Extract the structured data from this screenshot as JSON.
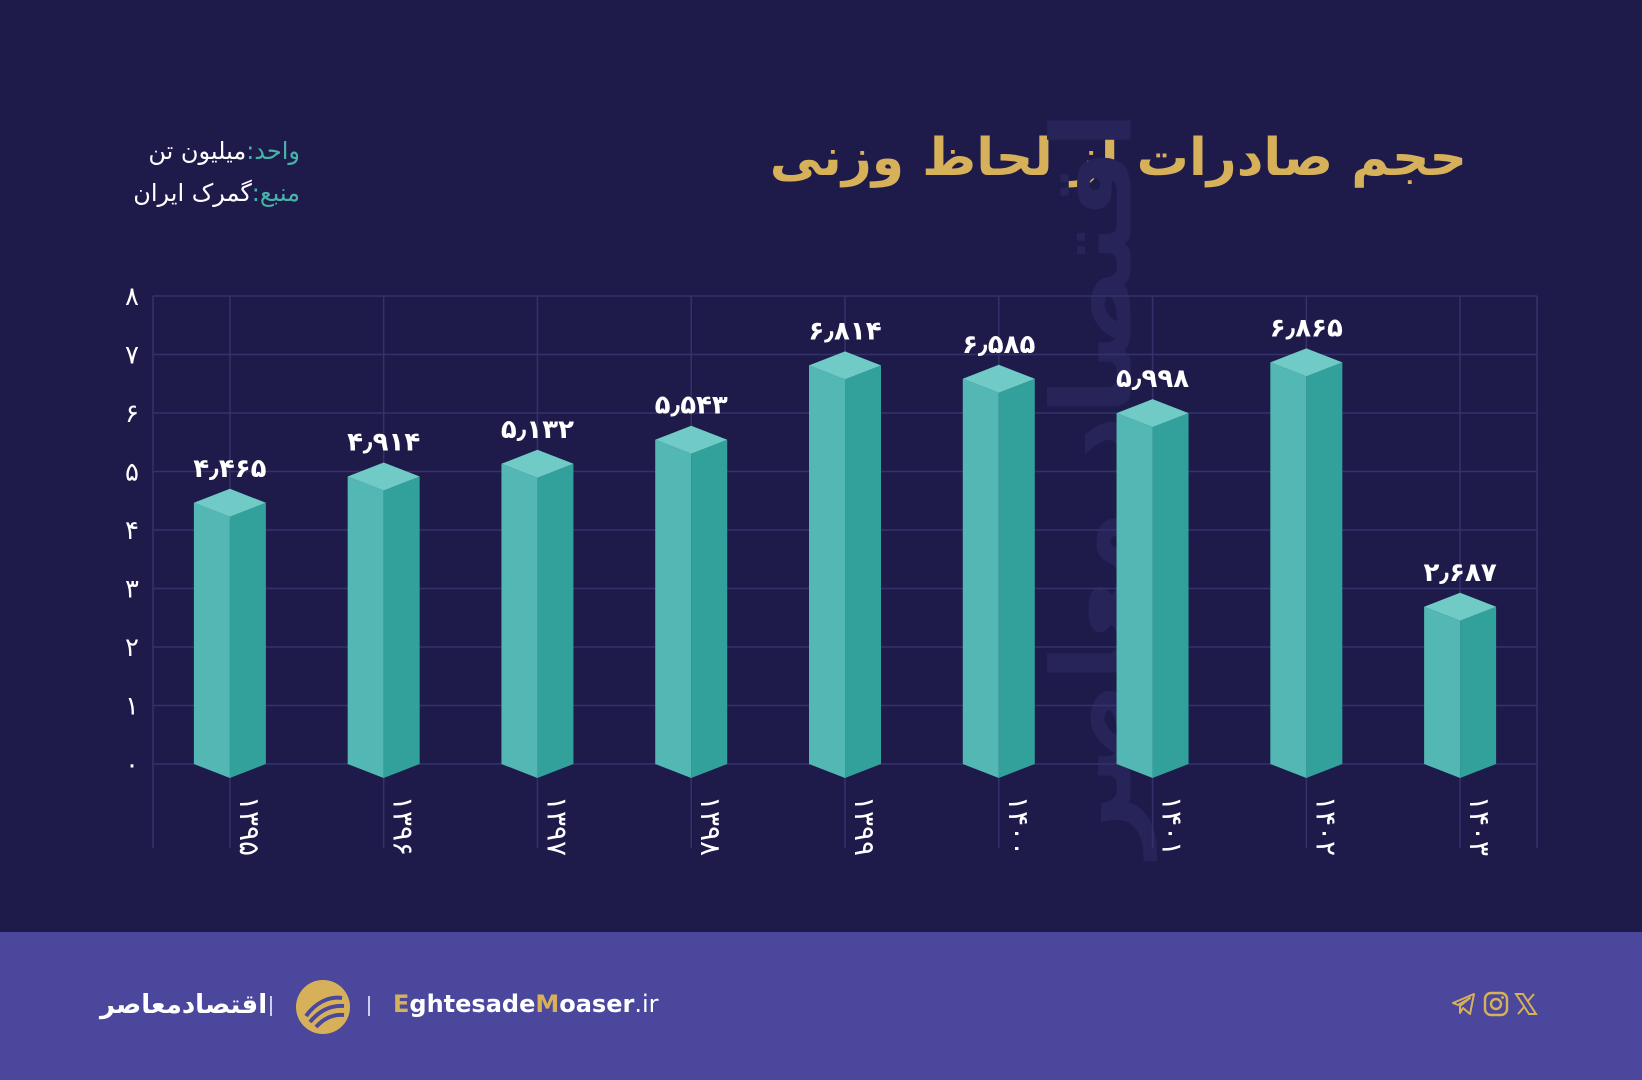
{
  "header": {
    "title": "حجم صادرات از لحاظ وزنی",
    "unit_label": "واحد:",
    "unit_value": "میلیون تن",
    "source_label": "منبع:",
    "source_value": "گمرک ایران"
  },
  "watermark": "اقتصاد معاصر",
  "chart_data": {
    "type": "bar",
    "categories": [
      "۱۳۹۵",
      "۱۳۹۶",
      "۱۳۹۷",
      "۱۳۹۸",
      "۱۳۹۹",
      "۱۴۰۰",
      "۱۴۰۱",
      "۱۴۰۲",
      "۱۴۰۳"
    ],
    "values": [
      4.465,
      4.914,
      5.132,
      5.543,
      6.814,
      6.585,
      5.998,
      6.865,
      2.687
    ],
    "value_labels": [
      "۴٫۴۶۵",
      "۴٫۹۱۴",
      "۵٫۱۳۲",
      "۵٫۵۴۳",
      "۶٫۸۱۴",
      "۶٫۵۸۵",
      "۵٫۹۹۸",
      "۶٫۸۶۵",
      "۲٫۶۸۷"
    ],
    "y_ticks": [
      "۰",
      "۱",
      "۲",
      "۳",
      "۴",
      "۵",
      "۶",
      "۷",
      "۸"
    ],
    "ylim": [
      0,
      8
    ],
    "grid": true,
    "colors": {
      "front": "#53b8b4",
      "side": "#32a19b",
      "top": "#70cbc6",
      "grid": "#34326a"
    }
  },
  "footer": {
    "brand_fa": "اقتصادمعاصر",
    "site_highlight_1": "E",
    "site_part_1": "ghtesade",
    "site_highlight_2": "M",
    "site_part_2": "oaser",
    "site_tld": ".ir",
    "icons": [
      "telegram-icon",
      "instagram-icon",
      "x-icon"
    ]
  }
}
